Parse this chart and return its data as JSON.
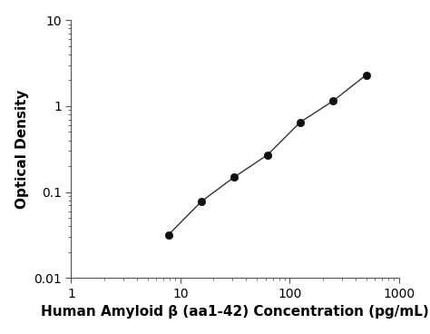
{
  "x_data": [
    7.8,
    15.6,
    31.25,
    62.5,
    125,
    250,
    500
  ],
  "y_data": [
    0.032,
    0.078,
    0.15,
    0.27,
    0.65,
    1.15,
    2.3
  ],
  "xlabel": "Human Amyloid β (aa1-42) Concentration (pg/mL)",
  "ylabel": "Optical Density",
  "xlim": [
    1,
    1000
  ],
  "ylim": [
    0.01,
    10
  ],
  "xticks": [
    1,
    10,
    100,
    1000
  ],
  "yticks": [
    0.01,
    0.1,
    1,
    10
  ],
  "line_color": "#333333",
  "marker_color": "#111111",
  "marker_size": 6,
  "line_width": 1.0,
  "background_color": "#ffffff",
  "xlabel_fontsize": 11,
  "ylabel_fontsize": 11,
  "tick_fontsize": 10
}
